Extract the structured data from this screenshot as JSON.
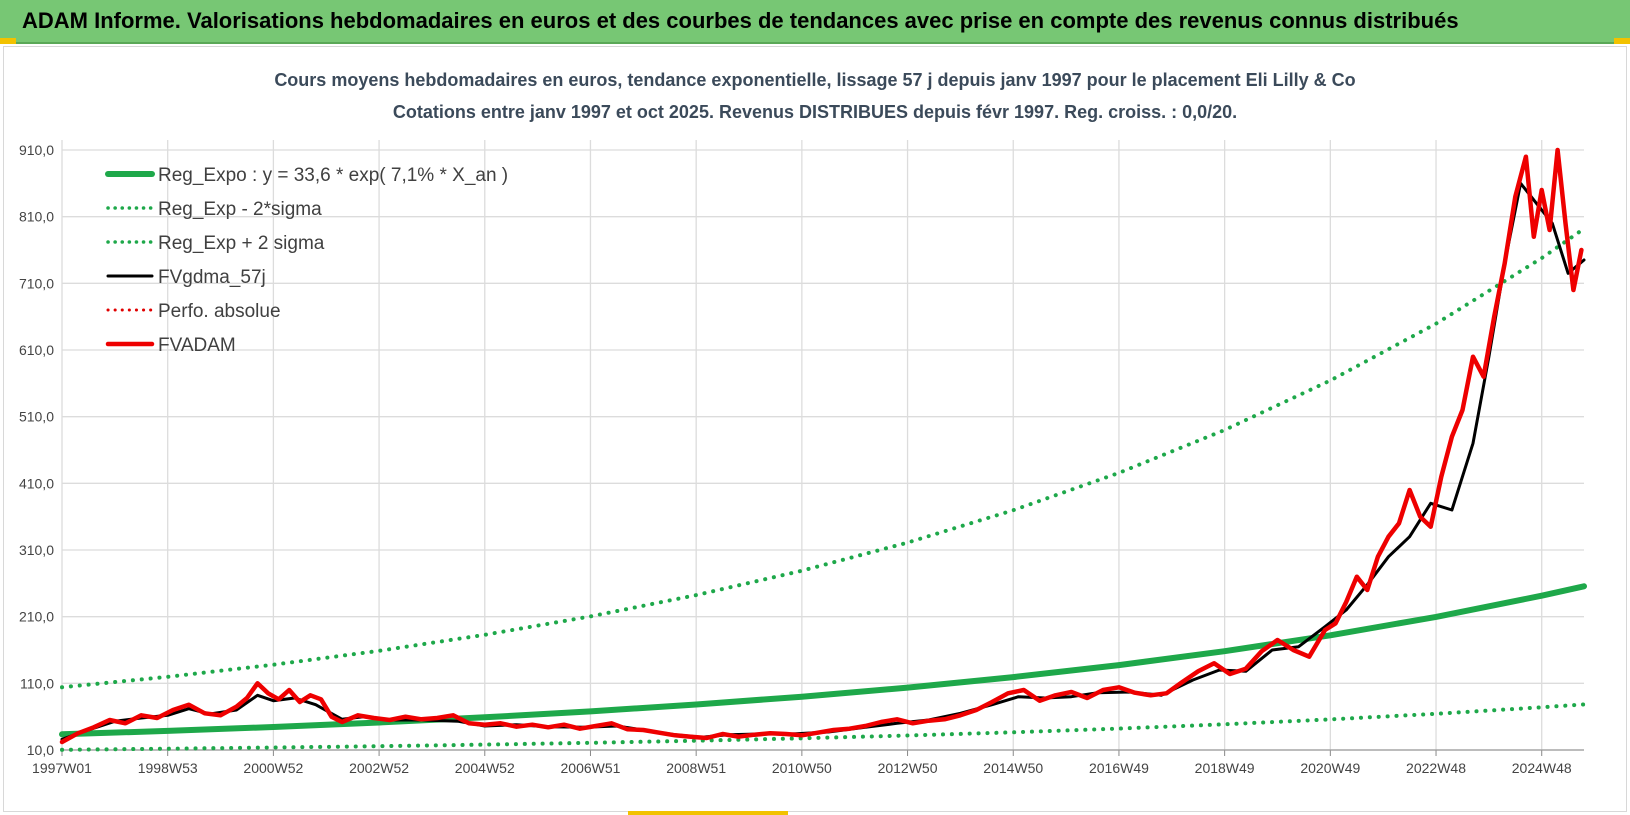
{
  "header": {
    "title": "ADAM Informe. Valorisations hebdomadaires en euros et des courbes de tendances avec prise en compte des revenus connus distribués"
  },
  "chart_data": {
    "type": "line",
    "title": "Cours moyens hebdomadaires en euros, tendance exponentielle, lissage 57 j depuis janv 1997 pour le placement Eli Lilly & Co",
    "subtitle": "Cotations entre janv 1997 et oct 2025. Revenus DISTRIBUES depuis févr 1997. Reg. croiss. : 0,0/20.",
    "ylim": [
      10,
      910
    ],
    "yticks": [
      "10,0",
      "110,0",
      "210,0",
      "310,0",
      "410,0",
      "510,0",
      "610,0",
      "710,0",
      "810,0",
      "910,0"
    ],
    "xlim": [
      1997.0,
      2025.8
    ],
    "xticks": [
      {
        "label": "1997W01",
        "x": 1997.0
      },
      {
        "label": "1998W53",
        "x": 1999.0
      },
      {
        "label": "2000W52",
        "x": 2001.0
      },
      {
        "label": "2002W52",
        "x": 2003.0
      },
      {
        "label": "2004W52",
        "x": 2005.0
      },
      {
        "label": "2006W51",
        "x": 2007.0
      },
      {
        "label": "2008W51",
        "x": 2009.0
      },
      {
        "label": "2010W50",
        "x": 2011.0
      },
      {
        "label": "2012W50",
        "x": 2013.0
      },
      {
        "label": "2014W50",
        "x": 2015.0
      },
      {
        "label": "2016W49",
        "x": 2017.0
      },
      {
        "label": "2018W49",
        "x": 2019.0
      },
      {
        "label": "2020W49",
        "x": 2021.0
      },
      {
        "label": "2022W48",
        "x": 2023.0
      },
      {
        "label": "2024W48",
        "x": 2025.0
      }
    ],
    "grid": true,
    "legend_position": "top-left",
    "series": [
      {
        "name": "Reg_Expo : y = 33,6 * exp( 7,1% *  X_an )",
        "color": "#1ea84a",
        "style": "solid",
        "width": 6,
        "x": [
          1997,
          1999,
          2001,
          2003,
          2005,
          2007,
          2009,
          2011,
          2013,
          2015,
          2017,
          2019,
          2021,
          2023,
          2025,
          2025.8
        ],
        "values": [
          33.6,
          38.7,
          44.5,
          51.2,
          59.0,
          67.9,
          78.2,
          90.0,
          103.6,
          119.3,
          137.4,
          158.2,
          182.1,
          209.7,
          241.4,
          255.6
        ]
      },
      {
        "name": "Reg_Exp - 2*sigma",
        "color": "#1ea84a",
        "style": "dotted",
        "width": 4,
        "x": [
          1997,
          1999,
          2001,
          2003,
          2005,
          2007,
          2009,
          2011,
          2013,
          2015,
          2017,
          2019,
          2021,
          2023,
          2025,
          2025.8
        ],
        "values": [
          10.3,
          11.9,
          13.7,
          15.7,
          18.1,
          20.8,
          24.0,
          27.6,
          31.8,
          36.6,
          42.1,
          48.5,
          55.9,
          64.3,
          74.0,
          78.4
        ]
      },
      {
        "name": "Reg_Exp + 2 sigma",
        "color": "#1ea84a",
        "style": "dotted",
        "width": 4,
        "x": [
          1997,
          1999,
          2001,
          2003,
          2005,
          2007,
          2009,
          2011,
          2013,
          2015,
          2017,
          2019,
          2021,
          2023,
          2025,
          2025.8
        ],
        "values": [
          104.0,
          119.8,
          137.9,
          158.8,
          182.8,
          210.4,
          242.3,
          278.9,
          321.1,
          369.7,
          425.6,
          490.0,
          564.2,
          649.5,
          747.8,
          792.0
        ]
      },
      {
        "name": "FVgdma_57j",
        "color": "#000000",
        "style": "solid",
        "width": 3,
        "x": [
          1997.0,
          1997.5,
          1998.0,
          1998.5,
          1999.0,
          1999.4,
          1999.8,
          2000.3,
          2000.7,
          2001.0,
          2001.4,
          2001.8,
          2002.3,
          2002.7,
          2003.2,
          2003.8,
          2004.5,
          2005.0,
          2005.6,
          2006.2,
          2006.9,
          2007.5,
          2008.0,
          2008.6,
          2009.1,
          2009.6,
          2010.2,
          2010.8,
          2011.5,
          2012.2,
          2012.8,
          2013.4,
          2014.0,
          2014.6,
          2015.1,
          2015.6,
          2016.1,
          2016.6,
          2017.2,
          2017.8,
          2018.4,
          2018.9,
          2019.4,
          2019.9,
          2020.4,
          2020.9,
          2021.3,
          2021.7,
          2022.1,
          2022.5,
          2022.9,
          2023.3,
          2023.7,
          2024.0,
          2024.3,
          2024.6,
          2024.9,
          2025.2,
          2025.5,
          2025.8
        ],
        "values": [
          26,
          40,
          53,
          58,
          62,
          72,
          64,
          70,
          92,
          84,
          88,
          78,
          56,
          60,
          55,
          55,
          53,
          46,
          48,
          45,
          44,
          46,
          40,
          33,
          29,
          33,
          34,
          34,
          37,
          44,
          50,
          55,
          65,
          78,
          90,
          88,
          90,
          96,
          97,
          92,
          115,
          130,
          128,
          160,
          165,
          195,
          220,
          258,
          300,
          330,
          380,
          370,
          470,
          600,
          740,
          860,
          830,
          800,
          725,
          745
        ]
      },
      {
        "name": "Perfo. absolue",
        "color": "#e00000",
        "style": "dotted",
        "width": 3,
        "x": [],
        "values": []
      },
      {
        "name": "FVADAM",
        "color": "#ee0000",
        "style": "solid",
        "width": 4.5,
        "x": [
          1997.0,
          1997.3,
          1997.6,
          1997.9,
          1998.2,
          1998.5,
          1998.8,
          1999.1,
          1999.4,
          1999.7,
          2000.0,
          2000.3,
          2000.5,
          2000.7,
          2000.9,
          2001.1,
          2001.3,
          2001.5,
          2001.7,
          2001.9,
          2002.1,
          2002.3,
          2002.6,
          2002.9,
          2003.2,
          2003.5,
          2003.8,
          2004.1,
          2004.4,
          2004.7,
          2005.0,
          2005.3,
          2005.6,
          2005.9,
          2006.2,
          2006.5,
          2006.8,
          2007.1,
          2007.4,
          2007.7,
          2008.0,
          2008.3,
          2008.6,
          2008.9,
          2009.2,
          2009.5,
          2009.8,
          2010.1,
          2010.4,
          2010.7,
          2011.0,
          2011.3,
          2011.6,
          2011.9,
          2012.2,
          2012.5,
          2012.8,
          2013.1,
          2013.4,
          2013.7,
          2014.0,
          2014.3,
          2014.6,
          2014.9,
          2015.2,
          2015.5,
          2015.8,
          2016.1,
          2016.4,
          2016.7,
          2017.0,
          2017.3,
          2017.6,
          2017.9,
          2018.2,
          2018.5,
          2018.8,
          2019.1,
          2019.4,
          2019.7,
          2020.0,
          2020.3,
          2020.6,
          2020.9,
          2021.1,
          2021.3,
          2021.5,
          2021.7,
          2021.9,
          2022.1,
          2022.3,
          2022.5,
          2022.7,
          2022.9,
          2023.1,
          2023.3,
          2023.5,
          2023.7,
          2023.9,
          2024.1,
          2024.3,
          2024.5,
          2024.7,
          2024.85,
          2025.0,
          2025.15,
          2025.3,
          2025.45,
          2025.6,
          2025.75
        ],
        "values": [
          22,
          35,
          44,
          55,
          50,
          62,
          58,
          70,
          78,
          65,
          62,
          75,
          88,
          110,
          95,
          86,
          100,
          82,
          92,
          86,
          60,
          52,
          62,
          58,
          55,
          60,
          56,
          58,
          62,
          50,
          48,
          50,
          45,
          48,
          44,
          48,
          42,
          46,
          50,
          41,
          40,
          36,
          32,
          30,
          28,
          34,
          30,
          33,
          35,
          34,
          32,
          36,
          40,
          42,
          46,
          52,
          56,
          50,
          54,
          56,
          62,
          70,
          82,
          95,
          100,
          84,
          92,
          97,
          88,
          100,
          104,
          96,
          92,
          95,
          112,
          128,
          140,
          124,
          132,
          158,
          175,
          160,
          150,
          190,
          200,
          232,
          270,
          250,
          300,
          330,
          350,
          400,
          360,
          345,
          420,
          480,
          520,
          600,
          570,
          660,
          740,
          840,
          900,
          780,
          850,
          790,
          910,
          800,
          700,
          760
        ]
      }
    ]
  }
}
